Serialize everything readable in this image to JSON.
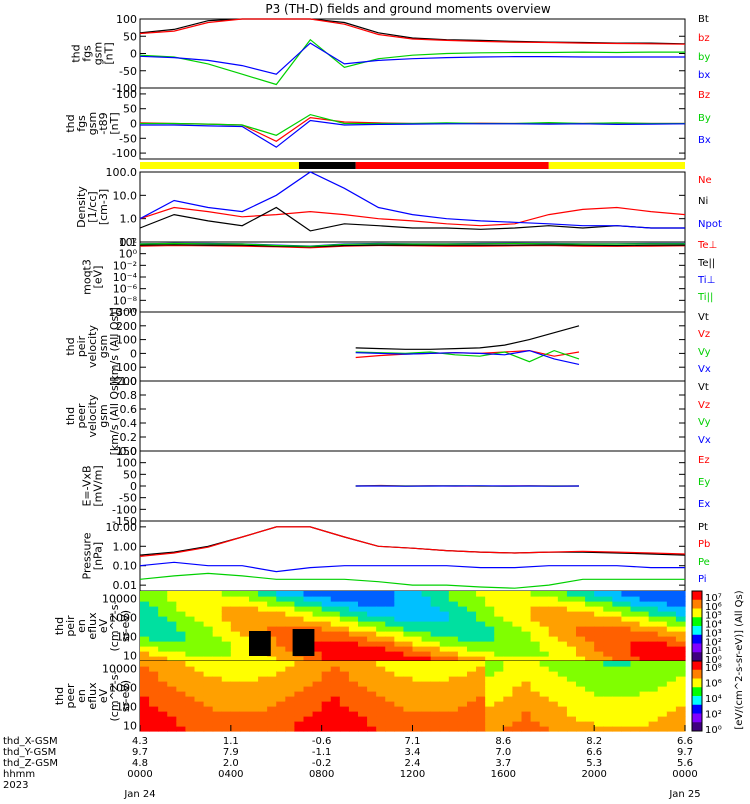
{
  "title": "P3 (TH-D) fields and ground moments overview",
  "colors": {
    "black": "#000000",
    "red": "#ff0000",
    "green": "#00d000",
    "blue": "#0000ff",
    "yellow": "#ffff00"
  },
  "chart_data": [
    {
      "type": "line",
      "ylabel": [
        "thd",
        "fgs",
        "gsm",
        "[nT]"
      ],
      "ylim": [
        -100,
        100
      ],
      "yticks": [
        "100",
        "50",
        "0",
        "-50",
        "-100"
      ],
      "yticks_values": [
        100,
        50,
        0,
        -50,
        -100
      ],
      "series": [
        {
          "name": "Bt",
          "color": "#000000",
          "values": [
            60,
            70,
            95,
            100,
            100,
            100,
            90,
            60,
            45,
            40,
            38,
            35,
            33,
            32,
            30,
            30,
            28
          ]
        },
        {
          "name": "bz",
          "color": "#ff0000",
          "values": [
            58,
            65,
            90,
            100,
            100,
            100,
            85,
            55,
            42,
            38,
            35,
            33,
            32,
            30,
            29,
            28,
            27
          ]
        },
        {
          "name": "by",
          "color": "#00d000",
          "values": [
            -5,
            -10,
            -30,
            -60,
            -90,
            40,
            -40,
            -15,
            -5,
            0,
            2,
            3,
            3,
            4,
            3,
            4,
            4
          ]
        },
        {
          "name": "bx",
          "color": "#0000ff",
          "values": [
            -8,
            -12,
            -20,
            -35,
            -60,
            30,
            -30,
            -20,
            -15,
            -12,
            -10,
            -9,
            -9,
            -10,
            -10,
            -10,
            -10
          ]
        }
      ]
    },
    {
      "type": "line",
      "ylabel": [
        "thd",
        "fgs",
        "gsm",
        "-t89",
        "[nT]"
      ],
      "ylim": [
        -120,
        120
      ],
      "yticks": [
        "100",
        "50",
        "0",
        "-50",
        "-100"
      ],
      "yticks_values": [
        100,
        50,
        0,
        -50,
        -100
      ],
      "series": [
        {
          "name": "Bz",
          "color": "#ff0000",
          "values": [
            2,
            0,
            -2,
            -5,
            -60,
            20,
            5,
            2,
            0,
            0,
            1,
            0,
            0,
            0,
            1,
            0,
            0
          ]
        },
        {
          "name": "By",
          "color": "#00d000",
          "values": [
            0,
            0,
            -2,
            -5,
            -40,
            30,
            0,
            0,
            0,
            2,
            0,
            0,
            3,
            0,
            2,
            0,
            0
          ]
        },
        {
          "name": "Bx",
          "color": "#0000ff",
          "values": [
            -5,
            -5,
            -8,
            -10,
            -80,
            10,
            -5,
            -3,
            -2,
            -1,
            -1,
            -1,
            -2,
            -1,
            -3,
            -2,
            -1
          ]
        }
      ]
    },
    {
      "type": "bar",
      "name": "region",
      "segments": [
        {
          "from": "0000",
          "to": "0700",
          "color": "#ffff00"
        },
        {
          "from": "0700",
          "to": "0930",
          "color": "#000000"
        },
        {
          "from": "0930",
          "to": "1800",
          "color": "#ff0000"
        },
        {
          "from": "1800",
          "to": "2400",
          "color": "#ffff00"
        }
      ]
    },
    {
      "type": "line",
      "ylabel": [
        "Density",
        "[1/cc]",
        "[cm-3]"
      ],
      "scale": "log",
      "ylim": [
        0.1,
        100
      ],
      "yticks": [
        "100.0",
        "10.0",
        "1.0",
        "0.1"
      ],
      "yticks_values": [
        100,
        10,
        1,
        0.1
      ],
      "series": [
        {
          "name": "Ne",
          "color": "#ff0000",
          "values": [
            1.0,
            3,
            2,
            1.2,
            1.5,
            2,
            1.5,
            1.0,
            0.8,
            0.6,
            0.5,
            0.6,
            1.5,
            2.5,
            3,
            2,
            1.5
          ]
        },
        {
          "name": "Ni",
          "color": "#000000",
          "values": [
            0.4,
            1.5,
            0.8,
            0.5,
            3,
            0.3,
            0.6,
            0.5,
            0.4,
            0.4,
            0.35,
            0.4,
            0.5,
            0.4,
            0.5,
            0.4,
            0.4
          ]
        },
        {
          "name": "Npot",
          "color": "#0000ff",
          "values": [
            1.0,
            6,
            3,
            2,
            10,
            100,
            20,
            3,
            1.5,
            1.0,
            0.8,
            0.7,
            0.6,
            0.5,
            0.5,
            0.4,
            0.4
          ]
        }
      ]
    },
    {
      "type": "line",
      "ylabel": [
        "moqt3",
        "[eV]"
      ],
      "scale": "log",
      "ylim": [
        1e-10,
        100
      ],
      "yticks": [
        "10²",
        "10⁰",
        "10⁻²",
        "10⁻⁴",
        "10⁻⁶",
        "10⁻⁸",
        "10⁻¹⁰"
      ],
      "yticks_values": [
        100,
        1,
        0.01,
        0.0001,
        1e-06,
        1e-08,
        1e-10
      ],
      "series": [
        {
          "name": "Te⊥",
          "color": "#ff0000",
          "values": [
            20,
            25,
            22,
            20,
            15,
            10,
            20,
            25,
            22,
            20,
            20,
            22,
            25,
            20,
            18,
            20,
            22
          ]
        },
        {
          "name": "Te||",
          "color": "#000000",
          "values": [
            30,
            35,
            30,
            28,
            20,
            15,
            25,
            30,
            30,
            28,
            28,
            30,
            32,
            28,
            25,
            28,
            30
          ]
        },
        {
          "name": "Ti⊥",
          "color": "#0000ff",
          "values": [
            50,
            60,
            55,
            50,
            30,
            20,
            45,
            55,
            50,
            50,
            55,
            60,
            55,
            50,
            50,
            55,
            55
          ]
        },
        {
          "name": "Ti||",
          "color": "#00d000",
          "values": [
            45,
            55,
            50,
            45,
            25,
            18,
            40,
            50,
            45,
            45,
            50,
            55,
            50,
            45,
            45,
            50,
            50
          ]
        }
      ]
    },
    {
      "type": "line",
      "ylabel": [
        "thd",
        "peir",
        "velocity",
        "gsm",
        "[km/s (All Qs)]"
      ],
      "ylim": [
        -200,
        300
      ],
      "yticks": [
        "300",
        "200",
        "100",
        "0",
        "-100",
        "-200"
      ],
      "yticks_values": [
        300,
        200,
        100,
        0,
        -100,
        -200
      ],
      "x_range": [
        "0930",
        "1920"
      ],
      "series": [
        {
          "name": "Vt",
          "color": "#000000",
          "values": [
            40,
            35,
            30,
            30,
            35,
            40,
            60,
            100,
            150,
            200
          ]
        },
        {
          "name": "Vz",
          "color": "#ff0000",
          "values": [
            -30,
            -15,
            -5,
            0,
            5,
            0,
            10,
            20,
            -20,
            10
          ]
        },
        {
          "name": "Vy",
          "color": "#00d000",
          "values": [
            10,
            5,
            0,
            10,
            -10,
            -20,
            10,
            -60,
            20,
            -40
          ]
        },
        {
          "name": "Vx",
          "color": "#0000ff",
          "values": [
            5,
            0,
            -5,
            0,
            5,
            0,
            -10,
            20,
            -40,
            -80
          ]
        }
      ]
    },
    {
      "type": "line",
      "ylabel": [
        "thd",
        "peer",
        "velocity",
        "gsm",
        "[km/s (All Qs)]"
      ],
      "ylim": [
        0,
        1
      ],
      "yticks": [
        "1.0",
        "0.8",
        "0.6",
        "0.4",
        "0.2",
        "0.0"
      ],
      "yticks_values": [
        1.0,
        0.8,
        0.6,
        0.4,
        0.2,
        0.0
      ],
      "series": [
        {
          "name": "Vt",
          "color": "#000000",
          "values": []
        },
        {
          "name": "Vz",
          "color": "#ff0000",
          "values": []
        },
        {
          "name": "Vy",
          "color": "#00d000",
          "values": []
        },
        {
          "name": "Vx",
          "color": "#0000ff",
          "values": []
        }
      ]
    },
    {
      "type": "line",
      "ylabel": [
        "E=-VxB",
        "[mV/m]"
      ],
      "ylim": [
        -150,
        150
      ],
      "yticks": [
        "150",
        "100",
        "50",
        "0",
        "-50",
        "-100",
        "-150"
      ],
      "yticks_values": [
        150,
        100,
        50,
        0,
        -50,
        -100,
        -150
      ],
      "x_range": [
        "0930",
        "1920"
      ],
      "series": [
        {
          "name": "Ez",
          "color": "#ff0000",
          "values": [
            0,
            2,
            0,
            1,
            0,
            -1,
            0,
            1,
            0,
            0
          ]
        },
        {
          "name": "Ey",
          "color": "#00d000",
          "values": [
            0,
            1,
            0,
            0,
            1,
            0,
            -1,
            0,
            0,
            0
          ]
        },
        {
          "name": "Ex",
          "color": "#0000ff",
          "values": [
            0,
            0,
            -1,
            0,
            0,
            1,
            0,
            0,
            -1,
            0
          ]
        }
      ]
    },
    {
      "type": "line",
      "ylabel": [
        "Pressure",
        "[nPa]"
      ],
      "scale": "log",
      "ylim": [
        0.005,
        20
      ],
      "yticks": [
        "10.00",
        "1.00",
        "0.10",
        "0.01"
      ],
      "yticks_values": [
        10,
        1,
        0.1,
        0.01
      ],
      "series": [
        {
          "name": "Pt",
          "color": "#000000",
          "values": [
            0.35,
            0.5,
            1,
            3,
            10,
            10,
            3,
            1,
            0.8,
            0.6,
            0.5,
            0.45,
            0.5,
            0.5,
            0.45,
            0.4,
            0.35
          ]
        },
        {
          "name": "Pb",
          "color": "#ff0000",
          "values": [
            0.3,
            0.45,
            0.9,
            3,
            10,
            10,
            3,
            1,
            0.8,
            0.6,
            0.5,
            0.45,
            0.5,
            0.55,
            0.5,
            0.45,
            0.4
          ]
        },
        {
          "name": "Pe",
          "color": "#00d000",
          "values": [
            0.02,
            0.03,
            0.04,
            0.03,
            0.02,
            0.02,
            0.02,
            0.015,
            0.01,
            0.01,
            0.008,
            0.007,
            0.01,
            0.02,
            0.02,
            0.02,
            0.02
          ]
        },
        {
          "name": "Pi",
          "color": "#0000ff",
          "values": [
            0.1,
            0.15,
            0.1,
            0.1,
            0.05,
            0.08,
            0.1,
            0.1,
            0.1,
            0.1,
            0.08,
            0.08,
            0.1,
            0.1,
            0.1,
            0.08,
            0.08
          ]
        }
      ]
    },
    {
      "type": "heatmap",
      "ylabel": [
        "thd",
        "peir",
        "en",
        "eflux",
        "eV",
        "(cm^2-s-",
        "sr-eV)"
      ],
      "scale": "log",
      "ylim": [
        5,
        25000
      ],
      "yticks": [
        "10000",
        "1000",
        "100",
        "10"
      ],
      "yticks_values": [
        10000,
        1000,
        100,
        10
      ],
      "colorbar_ticks": [
        "10⁷",
        "10⁶",
        "10⁵",
        "10⁴",
        "10³",
        "10²",
        "10¹",
        "10⁰"
      ]
    },
    {
      "type": "heatmap",
      "ylabel": [
        "thd",
        "peer",
        "en",
        "eflux",
        "eV",
        "(cm^2-s-",
        "sr-eV)"
      ],
      "scale": "log",
      "ylim": [
        5,
        25000
      ],
      "yticks": [
        "10000",
        "1000",
        "100",
        "10"
      ],
      "yticks_values": [
        10000,
        1000,
        100,
        10
      ],
      "colorbar_ticks": [
        "10⁸",
        "10⁶",
        "10⁴",
        "10²",
        "10⁰"
      ]
    }
  ],
  "colorbar_label": "[eV/(cm^2-s-sr-eV)] (All Qs)",
  "x_axis": {
    "row_labels": [
      "thd_X-GSM",
      "thd_Y-GSM",
      "thd_Z-GSM",
      "hhmm",
      "2023"
    ],
    "ticks": [
      {
        "hhmm": "0000",
        "x": "4.3",
        "y": "9.7",
        "z": "4.8",
        "date": "Jan 24"
      },
      {
        "hhmm": "0400",
        "x": "1.1",
        "y": "7.9",
        "z": "2.0",
        "date": ""
      },
      {
        "hhmm": "0800",
        "x": "-0.6",
        "y": "-1.1",
        "z": "-0.2",
        "date": ""
      },
      {
        "hhmm": "1200",
        "x": "7.1",
        "y": "3.4",
        "z": "2.4",
        "date": ""
      },
      {
        "hhmm": "1600",
        "x": "8.6",
        "y": "7.0",
        "z": "3.7",
        "date": ""
      },
      {
        "hhmm": "2000",
        "x": "8.2",
        "y": "6.6",
        "z": "5.3",
        "date": ""
      },
      {
        "hhmm": "0000",
        "x": "6.6",
        "y": "9.7",
        "z": "5.6",
        "date": "Jan 25"
      }
    ]
  }
}
